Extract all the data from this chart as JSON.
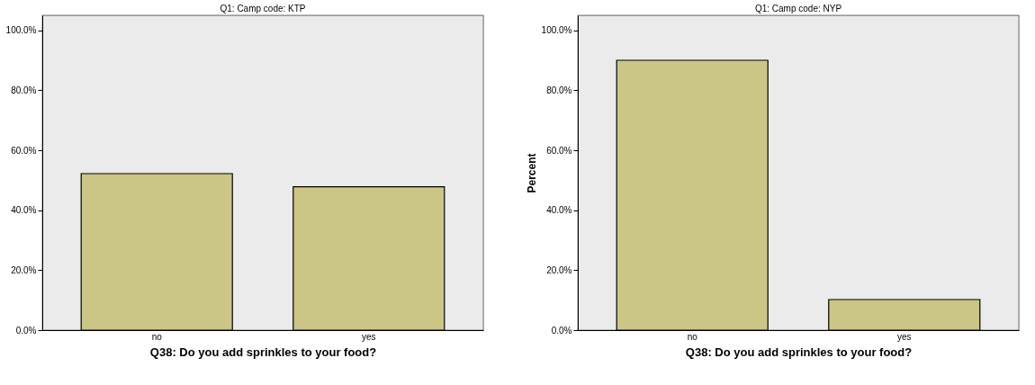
{
  "chart_data": [
    {
      "type": "bar",
      "title": "Q1: Camp code: KTP",
      "xlabel": "Q38: Do you add sprinkles to your food?",
      "categories": [
        "no",
        "yes"
      ],
      "values": [
        52.2,
        47.8
      ],
      "color": "#cbc686",
      "ylim": [
        0,
        105
      ],
      "yticks": [
        {
          "value": 0,
          "label": "0.0%"
        },
        {
          "value": 20,
          "label": "20.0%"
        },
        {
          "value": 40,
          "label": "40.0%"
        },
        {
          "value": 60,
          "label": "60.0%"
        },
        {
          "value": 80,
          "label": "80.0%"
        },
        {
          "value": 100,
          "label": "100.0%"
        }
      ],
      "grid": false,
      "legend": false
    },
    {
      "type": "bar",
      "title": "Q1: Camp code: NYP",
      "xlabel": "Q38: Do you add sprinkles to your food?",
      "ylabel": "Percent",
      "categories": [
        "no",
        "yes"
      ],
      "values": [
        90.0,
        10.2
      ],
      "color": "#cbc686",
      "ylim": [
        0,
        105
      ],
      "yticks": [
        {
          "value": 0,
          "label": "0.0%"
        },
        {
          "value": 20,
          "label": "20.0%"
        },
        {
          "value": 40,
          "label": "40.0%"
        },
        {
          "value": 60,
          "label": "60.0%"
        },
        {
          "value": 80,
          "label": "80.0%"
        },
        {
          "value": 100,
          "label": "100.0%"
        }
      ],
      "grid": false,
      "legend": false
    }
  ]
}
